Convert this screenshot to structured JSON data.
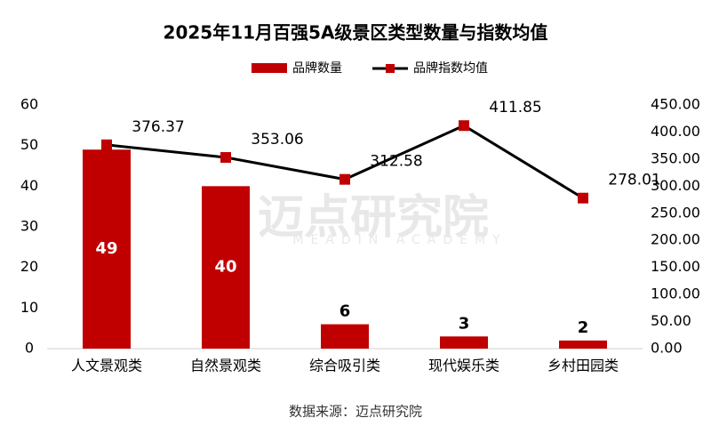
{
  "chart_data": {
    "type": "bar",
    "title": "2025年11月百强5A级景区类型数量与指数均值",
    "categories": [
      "人文景观类",
      "自然景观类",
      "综合吸引类",
      "现代娱乐类",
      "乡村田园类"
    ],
    "series": [
      {
        "name": "品牌数量",
        "color": "#c00000",
        "values": [
          49,
          40,
          6,
          3,
          2
        ]
      },
      {
        "name": "品牌指数均值",
        "type": "line",
        "axis": "y2",
        "color": "#000000",
        "marker_color": "#c00000",
        "values": [
          376.37,
          353.06,
          312.58,
          411.85,
          278.01
        ]
      }
    ],
    "ylim": [
      0,
      60
    ],
    "yticks": [
      0,
      10,
      20,
      30,
      40,
      50,
      60
    ],
    "y2lim": [
      0,
      450
    ],
    "y2ticks": [
      {
        "value": 0,
        "label": "0.00"
      },
      {
        "value": 50,
        "label": "50.00"
      },
      {
        "value": 100,
        "label": "100.00"
      },
      {
        "value": 150,
        "label": "150.00"
      },
      {
        "value": 200,
        "label": "200.00"
      },
      {
        "value": 250,
        "label": "250.00"
      },
      {
        "value": 300,
        "label": "300.00"
      },
      {
        "value": 350,
        "label": "350.00"
      },
      {
        "value": 400,
        "label": "400.00"
      },
      {
        "value": 450,
        "label": "450.00"
      }
    ],
    "grid": false,
    "legend": "top",
    "source": "数据来源：迈点研究院",
    "watermark": "迈点研究院",
    "watermark_sub": "MEADIN ACADEMY"
  }
}
